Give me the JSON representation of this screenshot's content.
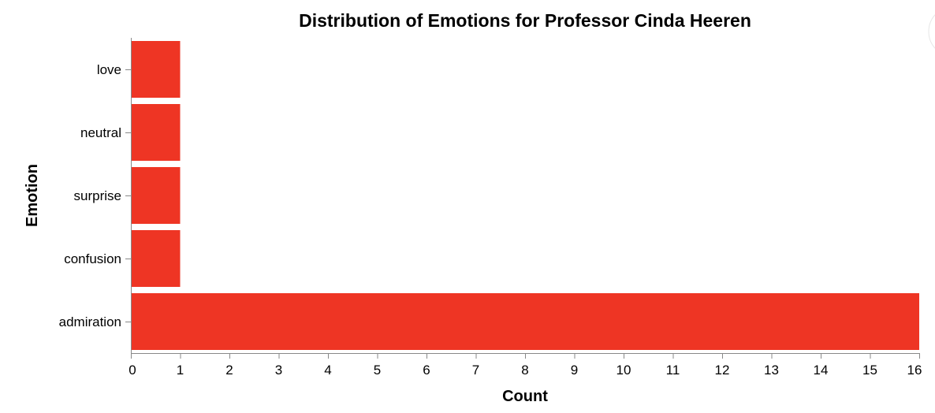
{
  "chart_data": {
    "type": "bar",
    "orientation": "horizontal",
    "title": "Distribution of Emotions for Professor Cinda Heeren",
    "xlabel": "Count",
    "ylabel": "Emotion",
    "categories": [
      "love",
      "neutral",
      "surprise",
      "confusion",
      "admiration"
    ],
    "values": [
      1,
      1,
      1,
      1,
      16
    ],
    "xlim": [
      0,
      16
    ],
    "xticks": [
      0,
      1,
      2,
      3,
      4,
      5,
      6,
      7,
      8,
      9,
      10,
      11,
      12,
      13,
      14,
      15,
      16
    ],
    "bar_color": "#ee3524",
    "grid": false,
    "legend": "none"
  }
}
